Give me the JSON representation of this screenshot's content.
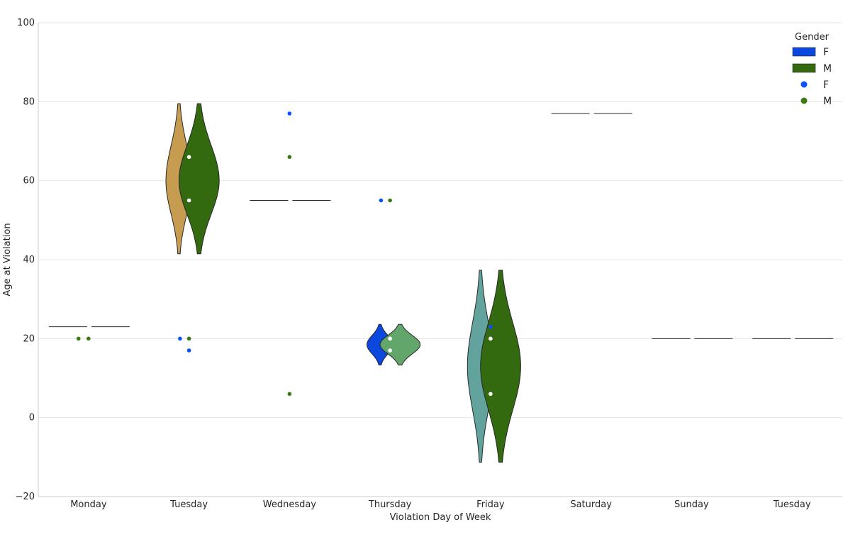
{
  "chart_data": {
    "type": "violin",
    "xlabel": "Violation Day of Week",
    "ylabel": "Age at Violation",
    "ylim": [
      -20,
      100
    ],
    "yticks": [
      -20,
      0,
      20,
      40,
      60,
      80,
      100
    ],
    "ytick_labels": [
      "−20",
      "0",
      "20",
      "40",
      "60",
      "80",
      "100"
    ],
    "grid": "horizontal",
    "categories": [
      "Monday",
      "Tuesday",
      "Wednesday",
      "Thursday",
      "Friday",
      "Saturday",
      "Sunday",
      "Tuesday"
    ],
    "legend": {
      "title": "Gender",
      "placement": "top-right",
      "entries": [
        {
          "label": "F",
          "kind": "patch",
          "color": "#0c47de"
        },
        {
          "label": "M",
          "kind": "patch",
          "color": "#33690f"
        },
        {
          "label": "F",
          "kind": "point",
          "color": "#0652ff"
        },
        {
          "label": "M",
          "kind": "point",
          "color": "#3b7a12"
        }
      ]
    },
    "violins": [
      {
        "category_index": 0,
        "side": "left",
        "kind": "line",
        "value": 23
      },
      {
        "category_index": 0,
        "side": "right",
        "kind": "line",
        "value": 23
      },
      {
        "category_index": 1,
        "side": "left",
        "kind": "violin",
        "min": 41.5,
        "max": 79.5,
        "peak": 60,
        "color": "#c69c50"
      },
      {
        "category_index": 1,
        "side": "right",
        "kind": "violin",
        "min": 41.5,
        "max": 79.5,
        "peak": 60,
        "color": "#33690f"
      },
      {
        "category_index": 2,
        "side": "left",
        "kind": "line",
        "value": 55
      },
      {
        "category_index": 2,
        "side": "right",
        "kind": "line",
        "value": 55
      },
      {
        "category_index": 3,
        "side": "left",
        "kind": "violin",
        "min": 13.3,
        "max": 23.6,
        "peak": 18.5,
        "color": "#0c47de"
      },
      {
        "category_index": 3,
        "side": "right",
        "kind": "violin",
        "min": 13.3,
        "max": 23.6,
        "peak": 18.5,
        "color": "#62a66c"
      },
      {
        "category_index": 4,
        "side": "left",
        "kind": "violin",
        "min": -11.3,
        "max": 37.3,
        "peak": 13,
        "color": "#62a39e"
      },
      {
        "category_index": 4,
        "side": "right",
        "kind": "violin",
        "min": -11.3,
        "max": 37.3,
        "peak": 13,
        "color": "#33690f"
      },
      {
        "category_index": 5,
        "side": "left",
        "kind": "line",
        "value": 77
      },
      {
        "category_index": 5,
        "side": "right",
        "kind": "line",
        "value": 77
      },
      {
        "category_index": 6,
        "side": "left",
        "kind": "line",
        "value": 20
      },
      {
        "category_index": 6,
        "side": "right",
        "kind": "line",
        "value": 20
      },
      {
        "category_index": 7,
        "side": "left",
        "kind": "line",
        "value": 20
      },
      {
        "category_index": 7,
        "side": "right",
        "kind": "line",
        "value": 20
      }
    ],
    "points": [
      {
        "category_index": 0,
        "gender": "M",
        "offset": -0.1,
        "y": 20,
        "color": "#3b7a12"
      },
      {
        "category_index": 0,
        "gender": "M",
        "offset": 0.0,
        "y": 20,
        "color": "#3b7a12"
      },
      {
        "category_index": 1,
        "gender": "F",
        "offset": -0.09,
        "y": 20,
        "color": "#0652ff"
      },
      {
        "category_index": 1,
        "gender": "M",
        "offset": 0.0,
        "y": 20,
        "color": "#3b7a12"
      },
      {
        "category_index": 1,
        "gender": "F",
        "offset": 0.0,
        "y": 17,
        "color": "#0652ff"
      },
      {
        "category_index": 1,
        "gender": "inner",
        "offset": 0.0,
        "y": 66,
        "color": "#ffffff"
      },
      {
        "category_index": 1,
        "gender": "inner",
        "offset": 0.0,
        "y": 55,
        "color": "#ffffff"
      },
      {
        "category_index": 2,
        "gender": "F",
        "offset": 0.0,
        "y": 77,
        "color": "#0652ff"
      },
      {
        "category_index": 2,
        "gender": "M",
        "offset": 0.0,
        "y": 66,
        "color": "#3b7a12"
      },
      {
        "category_index": 2,
        "gender": "M",
        "offset": 0.0,
        "y": 6,
        "color": "#3b7a12"
      },
      {
        "category_index": 3,
        "gender": "F",
        "offset": -0.09,
        "y": 55,
        "color": "#0652ff"
      },
      {
        "category_index": 3,
        "gender": "M",
        "offset": 0.0,
        "y": 55,
        "color": "#3b7a12"
      },
      {
        "category_index": 3,
        "gender": "inner",
        "offset": 0.0,
        "y": 20,
        "color": "#ffffff"
      },
      {
        "category_index": 3,
        "gender": "inner",
        "offset": 0.0,
        "y": 17,
        "color": "#ffffff"
      },
      {
        "category_index": 4,
        "gender": "F",
        "offset": 0.0,
        "y": 23,
        "color": "#0652ff"
      },
      {
        "category_index": 4,
        "gender": "inner",
        "offset": 0.0,
        "y": 20,
        "color": "#ffffff"
      },
      {
        "category_index": 4,
        "gender": "inner",
        "offset": 0.0,
        "y": 6,
        "color": "#ffffff"
      }
    ]
  }
}
